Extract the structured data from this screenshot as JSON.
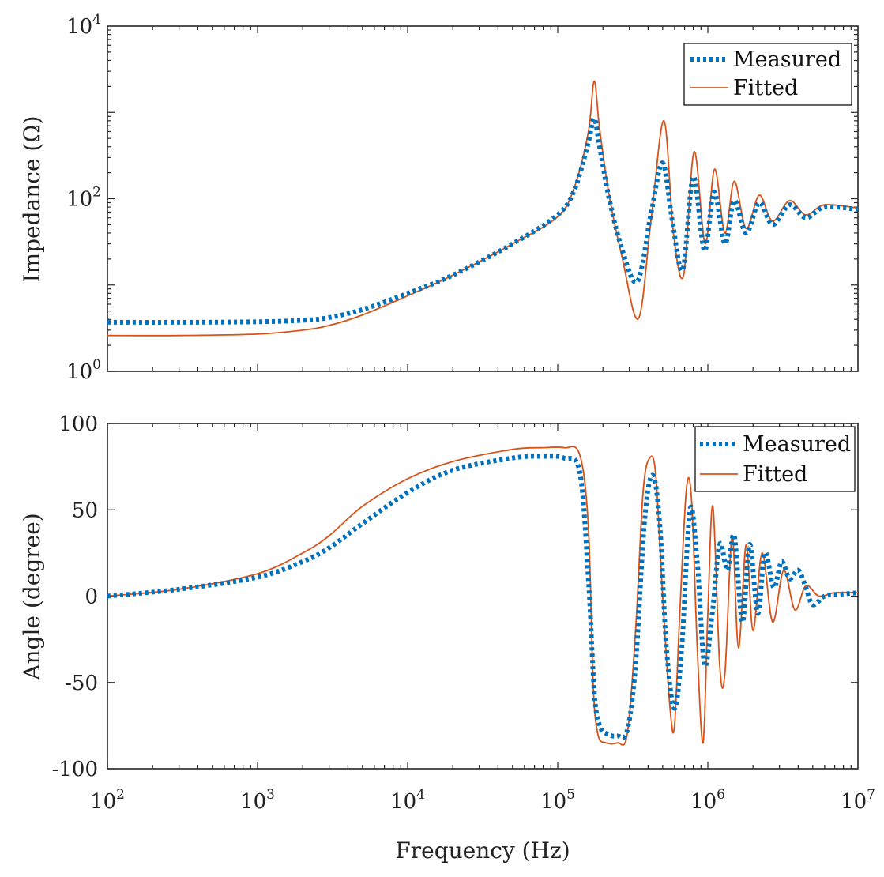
{
  "chart_data": [
    {
      "type": "line",
      "ylabel": "Impedance (Ω)",
      "xscale": "log",
      "yscale": "log",
      "xlim": [
        100,
        10000000
      ],
      "ylim": [
        1,
        10000
      ],
      "y_ticks": [
        {
          "base": "10",
          "exp": "0"
        },
        {
          "base": "10",
          "exp": "2"
        },
        {
          "base": "10",
          "exp": "4"
        }
      ],
      "legend": {
        "position": "top-right",
        "entries": [
          "Measured",
          "Fitted"
        ]
      },
      "series": [
        {
          "name": "Measured",
          "style": "dotted",
          "color": "#0072BD",
          "x": [
            100,
            300,
            1000,
            2000,
            3000,
            5000,
            10000,
            20000,
            50000,
            100000,
            130000,
            160000,
            175000,
            190000,
            220000,
            270000,
            340000,
            420000,
            500000,
            580000,
            680000,
            800000,
            950000,
            1100000,
            1300000,
            1500000,
            1800000,
            2200000,
            2700000,
            3500000,
            4500000,
            6000000,
            10000000
          ],
          "y": [
            3.7,
            3.7,
            3.75,
            3.9,
            4.2,
            5.2,
            8.0,
            13,
            30,
            65,
            130,
            450,
            850,
            400,
            100,
            25,
            11,
            70,
            260,
            55,
            15,
            180,
            25,
            120,
            30,
            95,
            40,
            90,
            50,
            85,
            60,
            80,
            75
          ]
        },
        {
          "name": "Fitted",
          "style": "solid",
          "color": "#D95319",
          "x": [
            100,
            300,
            1000,
            2000,
            3000,
            5000,
            10000,
            20000,
            50000,
            100000,
            130000,
            160000,
            175000,
            190000,
            220000,
            270000,
            345000,
            420000,
            510000,
            590000,
            690000,
            810000,
            960000,
            1110000,
            1300000,
            1500000,
            1800000,
            2200000,
            2700000,
            3500000,
            4500000,
            6000000,
            10000000
          ],
          "y": [
            2.6,
            2.6,
            2.7,
            3.0,
            3.4,
            4.5,
            7.5,
            13,
            30,
            62,
            140,
            600,
            2300,
            650,
            110,
            20,
            4.1,
            60,
            800,
            40,
            13,
            350,
            30,
            220,
            40,
            160,
            45,
            110,
            55,
            95,
            65,
            85,
            78
          ]
        }
      ]
    },
    {
      "type": "line",
      "xlabel": "Frequency (Hz)",
      "ylabel": "Angle (degree)",
      "xscale": "log",
      "xlim": [
        100,
        10000000
      ],
      "ylim": [
        -100,
        100
      ],
      "x_ticks": [
        {
          "base": "10",
          "exp": "2"
        },
        {
          "base": "10",
          "exp": "3"
        },
        {
          "base": "10",
          "exp": "4"
        },
        {
          "base": "10",
          "exp": "5"
        },
        {
          "base": "10",
          "exp": "6"
        },
        {
          "base": "10",
          "exp": "7"
        }
      ],
      "y_ticks": [
        "100",
        "50",
        "0",
        "-50",
        "-100"
      ],
      "legend": {
        "position": "top-right",
        "entries": [
          "Measured",
          "Fitted"
        ]
      },
      "series": [
        {
          "name": "Measured",
          "style": "dotted",
          "color": "#0072BD",
          "x": [
            100,
            300,
            1000,
            2000,
            3000,
            5000,
            10000,
            20000,
            50000,
            80000,
            110000,
            140000,
            160000,
            175000,
            190000,
            215000,
            250000,
            290000,
            330000,
            380000,
            430000,
            480000,
            530000,
            600000,
            670000,
            760000,
            850000,
            950000,
            1070000,
            1200000,
            1350000,
            1500000,
            1700000,
            1900000,
            2150000,
            2400000,
            2750000,
            3100000,
            3500000,
            4000000,
            4500000,
            5000000,
            6000000,
            7500000,
            10000000
          ],
          "y": [
            0,
            4,
            11,
            20,
            28,
            42,
            60,
            73,
            80,
            81,
            80,
            72,
            10,
            -55,
            -75,
            -80,
            -81,
            -78,
            -40,
            45,
            70,
            40,
            -30,
            -65,
            -30,
            50,
            20,
            -40,
            -10,
            30,
            15,
            35,
            -15,
            30,
            -10,
            25,
            5,
            20,
            10,
            15,
            5,
            -5,
            0,
            1,
            2
          ]
        },
        {
          "name": "Fitted",
          "style": "solid",
          "color": "#D95319",
          "x": [
            100,
            300,
            1000,
            2000,
            3000,
            5000,
            10000,
            20000,
            50000,
            80000,
            110000,
            140000,
            160000,
            172000,
            185000,
            210000,
            250000,
            290000,
            330000,
            370000,
            410000,
            450000,
            500000,
            560000,
            600000,
            650000,
            720000,
            780000,
            850000,
            930000,
            1000000,
            1080000,
            1200000,
            1300000,
            1450000,
            1600000,
            1800000,
            2000000,
            2300000,
            2700000,
            3200000,
            3800000,
            4500000,
            5500000,
            7000000,
            10000000
          ],
          "y": [
            0,
            4,
            13,
            25,
            35,
            52,
            68,
            78,
            85,
            86,
            86,
            82,
            40,
            -50,
            -80,
            -85,
            -85,
            -80,
            -20,
            60,
            80,
            70,
            0,
            -65,
            -75,
            -10,
            62,
            55,
            -30,
            -85,
            -10,
            52,
            -40,
            -45,
            35,
            -30,
            30,
            -20,
            25,
            -15,
            15,
            -8,
            6,
            0,
            2,
            2
          ]
        }
      ]
    }
  ]
}
